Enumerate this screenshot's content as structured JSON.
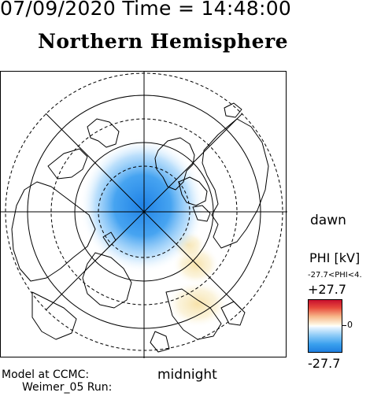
{
  "header": {
    "datetime": "07/09/2020 Time = 14:48:00",
    "title": "Northern Hemisphere"
  },
  "map": {
    "projection": "polar",
    "hemisphere": "north",
    "local_time_labels": {
      "right": "dawn",
      "bottom": "midnight"
    },
    "colors": {
      "negative": "#1f7fe0",
      "positive": "#f4e3a0",
      "coast": "#000000"
    }
  },
  "colorbar": {
    "title": "PHI [kV]",
    "range_text": "-27.7<PHI<4.",
    "max_label": "+27.7",
    "zero_label": "0",
    "min_label": "-27.7",
    "colors": [
      "#c8102e",
      "#ffffff",
      "#1f7fe0"
    ]
  },
  "footer": {
    "model_label": "Model at CCMC:",
    "run_label": "Weimer_05 Run:"
  }
}
